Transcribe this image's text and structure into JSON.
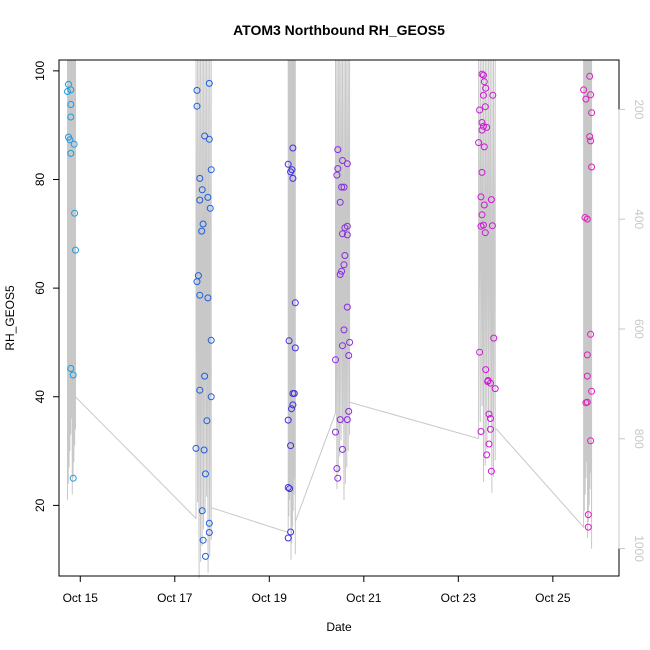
{
  "chart_data": {
    "type": "scatter",
    "title": "ATOM3 Northbound RH_GEOS5",
    "xlabel": "Date",
    "ylabel": "RH_GEOS5",
    "xlim": [
      14.55,
      26.4
    ],
    "ylim": [
      7,
      102
    ],
    "x_ticks": [
      {
        "value": 15,
        "label": "Oct 15"
      },
      {
        "value": 17,
        "label": "Oct 17"
      },
      {
        "value": 19,
        "label": "Oct 19"
      },
      {
        "value": 21,
        "label": "Oct 21"
      },
      {
        "value": 23,
        "label": "Oct 23"
      },
      {
        "value": 25,
        "label": "Oct 25"
      }
    ],
    "y_ticks": [
      20,
      40,
      60,
      80,
      100
    ],
    "right_axis": {
      "color": "#c8c8c8",
      "lim": [
        1050,
        110
      ],
      "ticks": [
        200,
        400,
        600,
        800,
        1000
      ]
    },
    "grid": false,
    "legend": "none",
    "series": [
      {
        "color": "#1e9be0",
        "points": [
          [
            14.75,
            97.5
          ],
          [
            14.73,
            96.2
          ],
          [
            14.8,
            96.5
          ],
          [
            14.8,
            93.8
          ],
          [
            14.8,
            91.5
          ],
          [
            14.75,
            87.8
          ],
          [
            14.78,
            87.3
          ],
          [
            14.87,
            86.5
          ],
          [
            14.8,
            84.8
          ],
          [
            14.88,
            73.8
          ],
          [
            14.9,
            67.0
          ],
          [
            14.8,
            45.2
          ],
          [
            14.85,
            44.0
          ],
          [
            14.85,
            25.0
          ]
        ]
      },
      {
        "color": "#1e5ee0",
        "points": [
          [
            17.47,
            96.4
          ],
          [
            17.73,
            97.7
          ],
          [
            17.47,
            93.5
          ],
          [
            17.63,
            88.0
          ],
          [
            17.73,
            87.4
          ],
          [
            17.77,
            81.8
          ],
          [
            17.53,
            80.2
          ],
          [
            17.58,
            78.1
          ],
          [
            17.7,
            76.7
          ],
          [
            17.53,
            76.2
          ],
          [
            17.75,
            74.7
          ],
          [
            17.6,
            71.8
          ],
          [
            17.57,
            70.5
          ],
          [
            17.5,
            62.3
          ],
          [
            17.47,
            61.2
          ],
          [
            17.53,
            58.7
          ],
          [
            17.7,
            58.2
          ],
          [
            17.77,
            50.4
          ],
          [
            17.63,
            43.8
          ],
          [
            17.53,
            41.2
          ],
          [
            17.77,
            40.0
          ],
          [
            17.68,
            35.6
          ],
          [
            17.45,
            30.5
          ],
          [
            17.62,
            30.2
          ],
          [
            17.65,
            25.8
          ],
          [
            17.58,
            19.0
          ],
          [
            17.73,
            16.7
          ],
          [
            17.73,
            15.0
          ],
          [
            17.6,
            13.6
          ],
          [
            17.65,
            10.6
          ]
        ]
      },
      {
        "color": "#3f2fe5",
        "points": [
          [
            19.5,
            85.8
          ],
          [
            19.4,
            82.8
          ],
          [
            19.48,
            81.8
          ],
          [
            19.45,
            81.4
          ],
          [
            19.5,
            80.2
          ],
          [
            19.55,
            57.3
          ],
          [
            19.42,
            50.3
          ],
          [
            19.55,
            49.0
          ],
          [
            19.53,
            40.6
          ],
          [
            19.5,
            40.6
          ],
          [
            19.5,
            38.5
          ],
          [
            19.47,
            37.8
          ],
          [
            19.4,
            35.7
          ],
          [
            19.45,
            31.0
          ],
          [
            19.4,
            23.3
          ],
          [
            19.43,
            23.1
          ],
          [
            19.45,
            15.1
          ],
          [
            19.4,
            14.0
          ]
        ]
      },
      {
        "color": "#8a2be2",
        "points": [
          [
            20.45,
            85.5
          ],
          [
            20.55,
            83.5
          ],
          [
            20.65,
            82.9
          ],
          [
            20.45,
            82.0
          ],
          [
            20.43,
            80.8
          ],
          [
            20.53,
            78.6
          ],
          [
            20.58,
            78.6
          ],
          [
            20.5,
            75.8
          ],
          [
            20.6,
            71.1
          ],
          [
            20.65,
            71.4
          ],
          [
            20.55,
            70.0
          ],
          [
            20.65,
            69.8
          ],
          [
            20.6,
            66.0
          ],
          [
            20.58,
            64.3
          ],
          [
            20.53,
            63.1
          ],
          [
            20.5,
            62.5
          ],
          [
            20.65,
            56.5
          ],
          [
            20.58,
            52.3
          ],
          [
            20.55,
            49.4
          ],
          [
            20.7,
            50.0
          ],
          [
            20.68,
            47.6
          ],
          [
            20.4,
            46.8
          ],
          [
            20.68,
            37.3
          ],
          [
            20.65,
            35.8
          ],
          [
            20.5,
            35.8
          ],
          [
            20.4,
            33.5
          ],
          [
            20.55,
            30.3
          ],
          [
            20.43,
            26.8
          ],
          [
            20.45,
            25.0
          ]
        ]
      },
      {
        "color": "#d018d8",
        "points": [
          [
            23.5,
            99.4
          ],
          [
            23.53,
            99.2
          ],
          [
            23.55,
            98.0
          ],
          [
            23.58,
            96.8
          ],
          [
            23.53,
            95.5
          ],
          [
            23.73,
            95.5
          ],
          [
            23.57,
            93.4
          ],
          [
            23.45,
            92.8
          ],
          [
            23.53,
            89.8
          ],
          [
            23.5,
            89.1
          ],
          [
            23.5,
            90.5
          ],
          [
            23.6,
            89.6
          ],
          [
            23.43,
            86.8
          ],
          [
            23.55,
            86.0
          ],
          [
            23.5,
            81.3
          ],
          [
            23.48,
            76.8
          ],
          [
            23.7,
            76.3
          ],
          [
            23.55,
            75.3
          ],
          [
            23.5,
            73.5
          ],
          [
            23.48,
            71.4
          ],
          [
            23.53,
            71.6
          ],
          [
            23.72,
            71.5
          ],
          [
            23.57,
            70.2
          ],
          [
            23.75,
            50.8
          ],
          [
            23.45,
            48.2
          ],
          [
            23.58,
            45.0
          ],
          [
            23.63,
            43.0
          ],
          [
            23.62,
            42.8
          ],
          [
            23.68,
            42.5
          ],
          [
            23.78,
            41.5
          ],
          [
            23.65,
            36.8
          ],
          [
            23.68,
            36.0
          ],
          [
            23.68,
            34.0
          ],
          [
            23.48,
            33.6
          ],
          [
            23.65,
            31.3
          ],
          [
            23.6,
            29.3
          ],
          [
            23.7,
            26.3
          ]
        ]
      },
      {
        "color": "#e01dc0",
        "points": [
          [
            25.78,
            99.0
          ],
          [
            25.65,
            96.5
          ],
          [
            25.8,
            95.6
          ],
          [
            25.7,
            94.8
          ],
          [
            25.82,
            92.3
          ],
          [
            25.78,
            87.9
          ],
          [
            25.8,
            87.1
          ],
          [
            25.82,
            82.3
          ],
          [
            25.68,
            73.0
          ],
          [
            25.73,
            72.7
          ],
          [
            25.8,
            51.5
          ],
          [
            25.73,
            47.7
          ],
          [
            25.73,
            43.8
          ],
          [
            25.82,
            41.0
          ],
          [
            25.7,
            38.9
          ],
          [
            25.73,
            39.0
          ],
          [
            25.8,
            31.9
          ],
          [
            25.75,
            18.3
          ],
          [
            25.75,
            16.0
          ]
        ]
      }
    ]
  }
}
